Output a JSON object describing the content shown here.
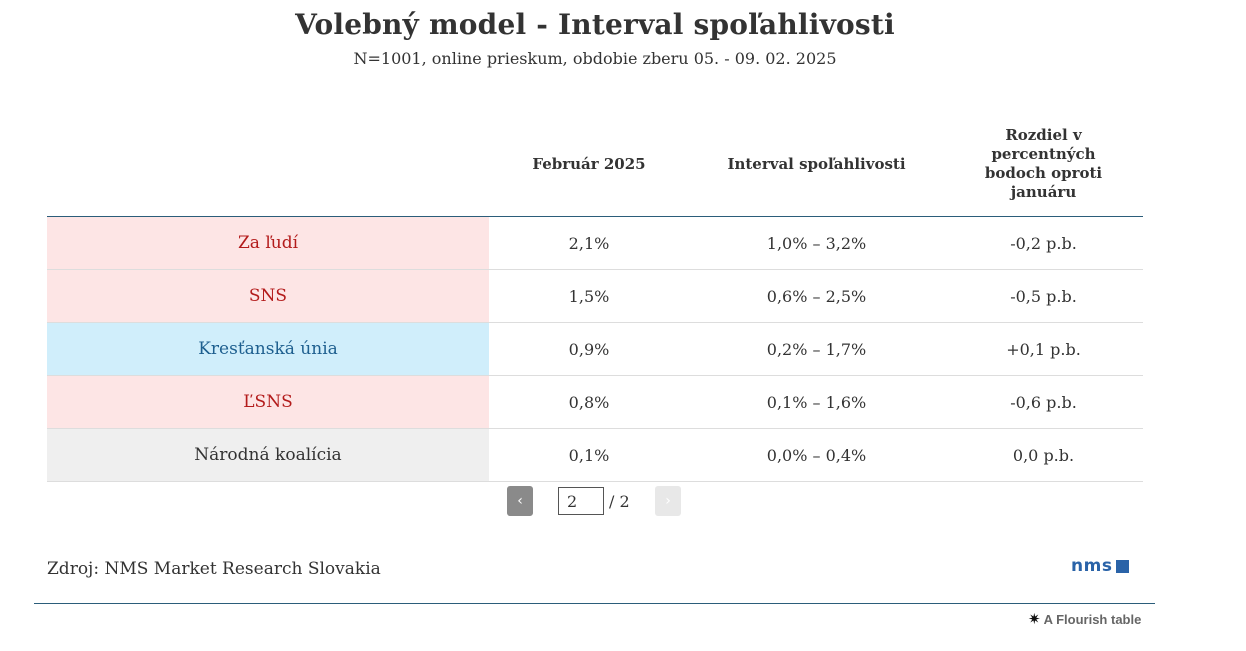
{
  "title": "Volebný model - Interval spoľahlivosti",
  "subtitle": "N=1001, online prieskum, obdobie zberu 05. - 09. 02. 2025",
  "table": {
    "headers": [
      "",
      "Február 2025",
      "Interval spoľahlivosti",
      "Rozdiel v percentných bodoch oproti januáru"
    ],
    "rows": [
      {
        "party": "Za ľudí",
        "value": "2,1%",
        "interval": "1,0% – 3,2%",
        "diff": "-0,2 p.b.",
        "color": "#fde5e5"
      },
      {
        "party": "SNS",
        "value": "1,5%",
        "interval": "0,6% – 2,5%",
        "diff": "-0,5 p.b.",
        "color": "#fde5e5"
      },
      {
        "party": "Kresťanská únia",
        "value": "0,9%",
        "interval": "0,2% – 1,7%",
        "diff": "+0,1 p.b.",
        "color": "#d0eefb"
      },
      {
        "party": "ĽSNS",
        "value": "0,8%",
        "interval": "0,1% – 1,6%",
        "diff": "-0,6 p.b.",
        "color": "#fde5e5"
      },
      {
        "party": "Národná koalícia",
        "value": "0,1%",
        "interval": "0,0% – 0,4%",
        "diff": "0,0 p.b.",
        "color": "#efefef"
      }
    ]
  },
  "pagination": {
    "prev_icon": "‹",
    "next_icon": "›",
    "current_page": "2",
    "total": "/ 2"
  },
  "footer": {
    "source": "Zdroj: NMS Market Research Slovakia",
    "logo_text": "nms",
    "flourish_icon": "✷",
    "flourish_label": "A Flourish table"
  }
}
